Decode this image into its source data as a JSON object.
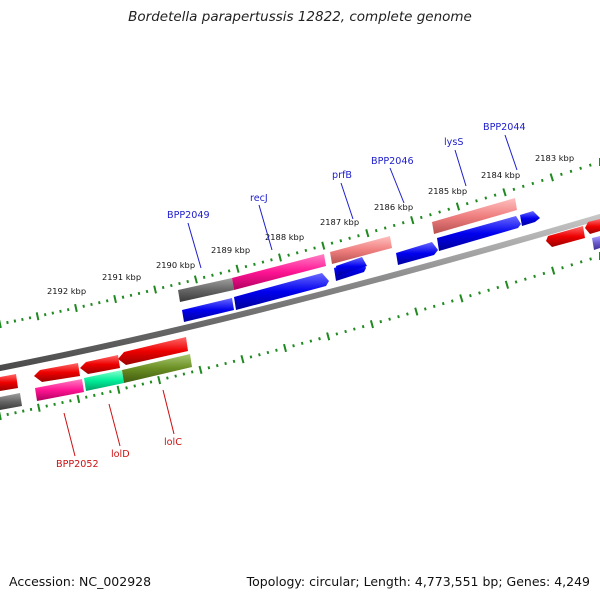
{
  "header": {
    "title": "Bordetella parapertussis 12822, complete genome"
  },
  "footer": {
    "accession": "Accession: NC_002928",
    "summary": "Topology: circular; Length: 4,773,551 bp; Genes: 4,249"
  },
  "axis": {
    "ticks": [
      {
        "label": "2183 kbp"
      },
      {
        "label": "2184 kbp"
      },
      {
        "label": "2185 kbp"
      },
      {
        "label": "2186 kbp"
      },
      {
        "label": "2187 kbp"
      },
      {
        "label": "2188 kbp"
      },
      {
        "label": "2189 kbp"
      },
      {
        "label": "2190 kbp"
      },
      {
        "label": "2191 kbp"
      },
      {
        "label": "2192 kbp"
      }
    ]
  },
  "genes": {
    "forward": [
      {
        "label": "BPP2044",
        "color": "#1d1dcc"
      },
      {
        "label": "lysS",
        "color": "#1d1dcc"
      },
      {
        "label": "BPP2046",
        "color": "#1d1dcc"
      },
      {
        "label": "prfB",
        "color": "#1d1dcc"
      },
      {
        "label": "recJ",
        "color": "#1d1dcc"
      },
      {
        "label": "BPP2049",
        "color": "#1d1dcc"
      }
    ],
    "reverse": [
      {
        "label": "lolC",
        "color": "#cc1111"
      },
      {
        "label": "lolD",
        "color": "#cc1111"
      },
      {
        "label": "BPP2052",
        "color": "#cc1111"
      }
    ]
  },
  "colors": {
    "backbone": "#808080",
    "forward_gene": "#0000ee",
    "reverse_gene": "#ee0000",
    "cog_gray": "#666666",
    "cog_magenta": "#ff1493",
    "cog_salmon": "#f08080",
    "cog_mint": "#00ee99",
    "cog_olive": "#6b8e23",
    "cog_purple": "#6a5acd",
    "tick_green": "#1f8a1f"
  }
}
